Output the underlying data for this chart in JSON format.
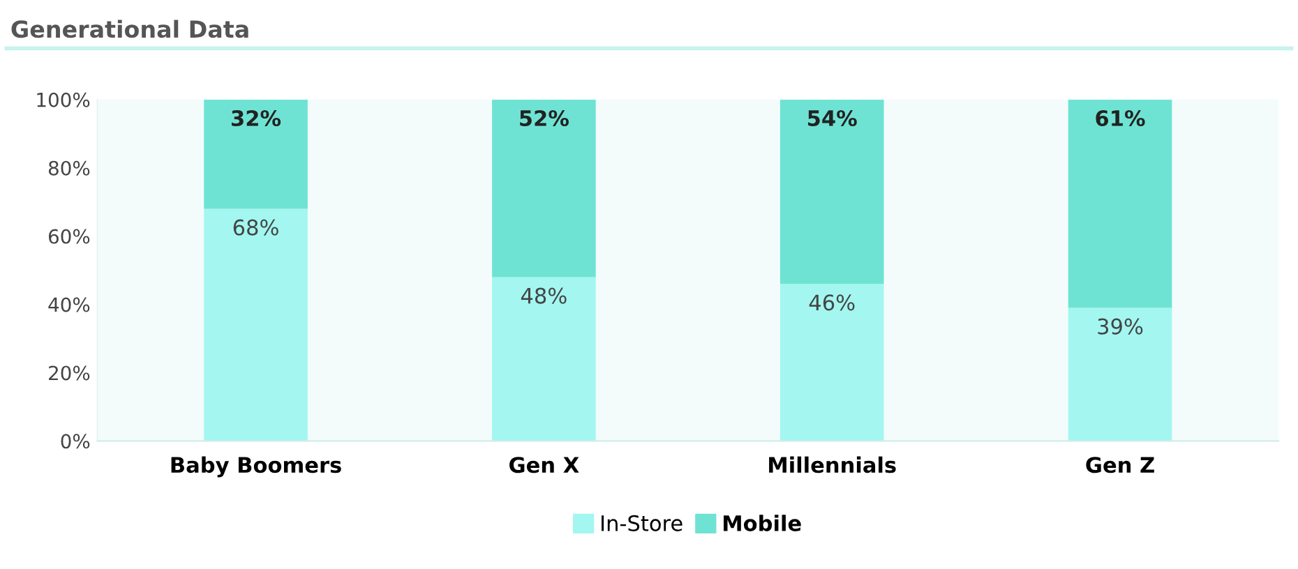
{
  "chart_data": {
    "type": "bar",
    "title": "Generational Data",
    "stacked": true,
    "categories": [
      "Baby Boomers",
      "Gen X",
      "Millennials",
      "Gen Z"
    ],
    "series": [
      {
        "name": "In-Store",
        "color": "#a3f7f0",
        "values": [
          68,
          48,
          46,
          39
        ],
        "value_labels": [
          "68%",
          "48%",
          "46%",
          "39%"
        ]
      },
      {
        "name": "Mobile",
        "color": "#6fe3d3",
        "values": [
          32,
          52,
          54,
          61
        ],
        "value_labels": [
          "32%",
          "52%",
          "54%",
          "61%"
        ]
      }
    ],
    "ylim": [
      0,
      100
    ],
    "yticks": [
      {
        "value": 0,
        "label": "0%"
      },
      {
        "value": 20,
        "label": "20%"
      },
      {
        "value": 40,
        "label": "40%"
      },
      {
        "value": 60,
        "label": "60%"
      },
      {
        "value": 80,
        "label": "80%"
      },
      {
        "value": 100,
        "label": "100%"
      }
    ],
    "grid": false,
    "legend": "bottom"
  }
}
